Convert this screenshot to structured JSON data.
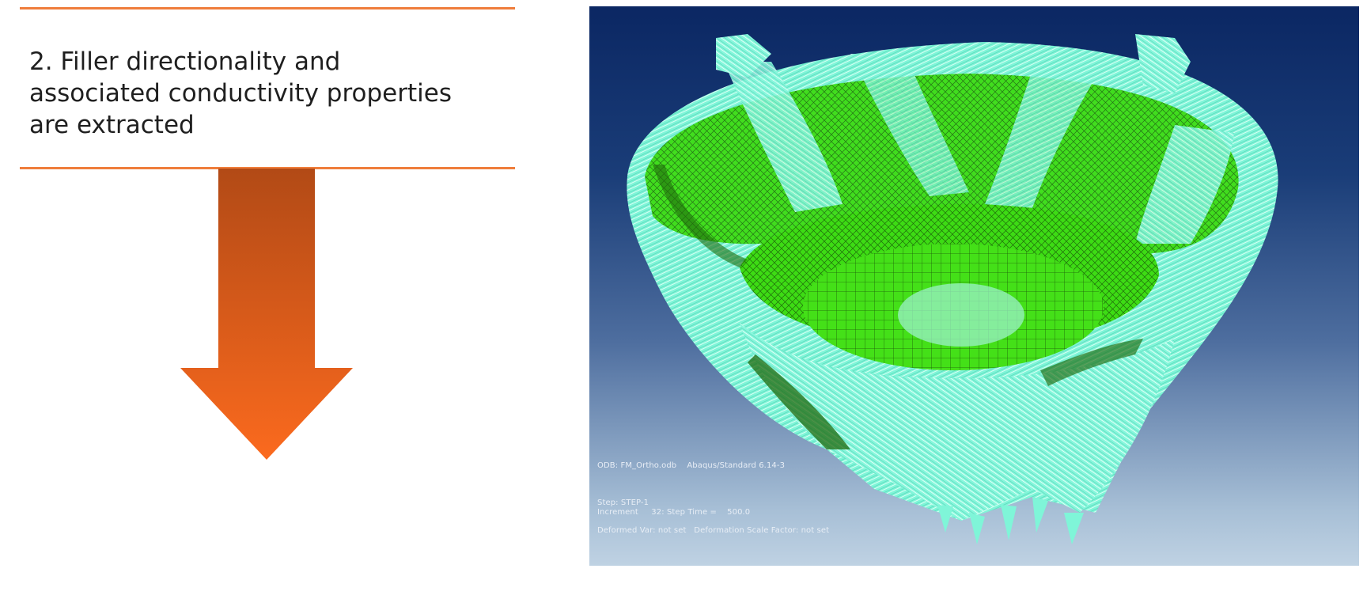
{
  "step": {
    "line1": "2. Filler directionality and",
    "line2": "associated conductivity properties",
    "line3": "are extracted"
  },
  "colors": {
    "accent_rule": "#ef7d3b",
    "arrow_top": "#b24a16",
    "arrow_bottom": "#fb6a1e",
    "mesh_green": "#3ddc14",
    "fiber_cyan": "#7ff5d8",
    "bg_top": "#0b2763",
    "bg_bottom": "#bfd2e3"
  },
  "icons": {
    "arrow": "down-arrow-icon"
  },
  "figure": {
    "odb_line": "ODB: FM_Ortho.odb    Abaqus/Standard 6.14-3",
    "step_line": "Step: STEP-1",
    "increment_line": "Increment     32: Step Time =    500.0",
    "deformed_line": "Deformed Var: not set   Deformation Scale Factor: not set"
  }
}
